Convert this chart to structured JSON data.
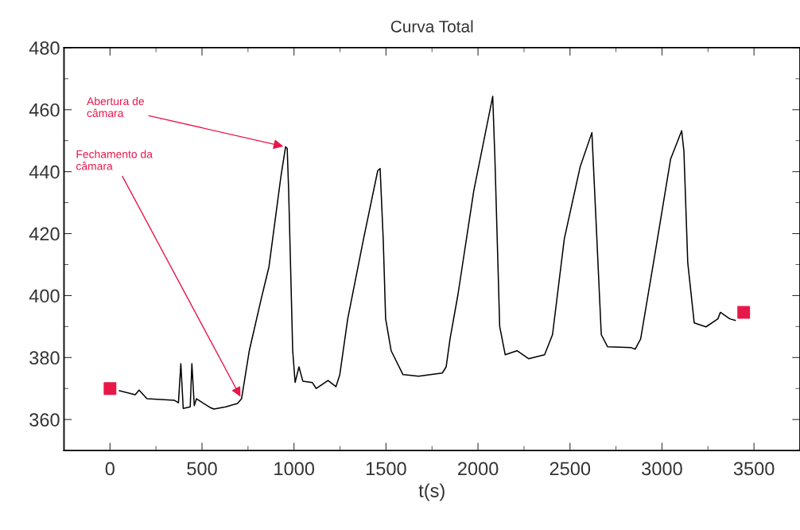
{
  "chart_data": {
    "type": "line",
    "title": "Curva Total",
    "xlabel": "t(s)",
    "xlim": [
      -250,
      3750
    ],
    "ylim": [
      350,
      480
    ],
    "xticks": [
      0,
      500,
      1000,
      1500,
      2000,
      2500,
      3000,
      3500
    ],
    "yticks": [
      360,
      380,
      400,
      420,
      440,
      460,
      480
    ],
    "grid": false,
    "series": [
      {
        "color": "#000000",
        "marker": "none",
        "line_style": "solid",
        "x": [
          51,
          137,
          158,
          201,
          351,
          372,
          385,
          398,
          436,
          445,
          458,
          470,
          543,
          565,
          629,
          693,
          715,
          757,
          822,
          864,
          929,
          954,
          963,
          971,
          993,
          1006,
          1027,
          1048,
          1100,
          1121,
          1185,
          1228,
          1249,
          1292,
          1378,
          1455,
          1468,
          1485,
          1498,
          1528,
          1592,
          1677,
          1806,
          1827,
          1848,
          1891,
          1977,
          2080,
          2092,
          2118,
          2148,
          2212,
          2276,
          2362,
          2405,
          2469,
          2555,
          2619,
          2644,
          2670,
          2704,
          2833,
          2854,
          2884,
          2961,
          3047,
          3107,
          3119,
          3140,
          3175,
          3239,
          3304,
          3317,
          3368,
          3398
        ],
        "values": [
          369.3,
          368,
          369.5,
          366.7,
          366.2,
          365.4,
          378,
          363.6,
          364.1,
          378,
          364.5,
          366.7,
          363.9,
          363.4,
          364.1,
          365.2,
          366.7,
          382.2,
          399,
          409.3,
          438.5,
          448,
          447.5,
          433.8,
          382.2,
          372,
          377,
          372.4,
          371.9,
          370,
          372.6,
          370.6,
          374.5,
          392.5,
          418.3,
          440.3,
          441,
          418,
          392.5,
          382.2,
          374.5,
          374,
          375,
          377,
          386,
          400.3,
          433.8,
          464.3,
          444.1,
          390,
          380.9,
          382.2,
          379.6,
          380.9,
          387.4,
          418.3,
          441.5,
          452.6,
          420.9,
          387.4,
          383.5,
          383.2,
          382.7,
          386,
          413.2,
          444.1,
          453.2,
          446.7,
          410.6,
          391.2,
          389.9,
          392.5,
          394.6,
          392.5,
          392
        ]
      },
      {
        "type": "scatter",
        "color": "#e8174a",
        "marker": "square",
        "x": [
          0,
          3444
        ],
        "values": [
          370,
          394.6
        ]
      }
    ],
    "annotations": [
      {
        "text": "Abertura de\ncâmara",
        "x": 954,
        "y": 448
      },
      {
        "text": "Fechamento da\ncâmara",
        "x": 715,
        "y": 366.7
      }
    ]
  }
}
